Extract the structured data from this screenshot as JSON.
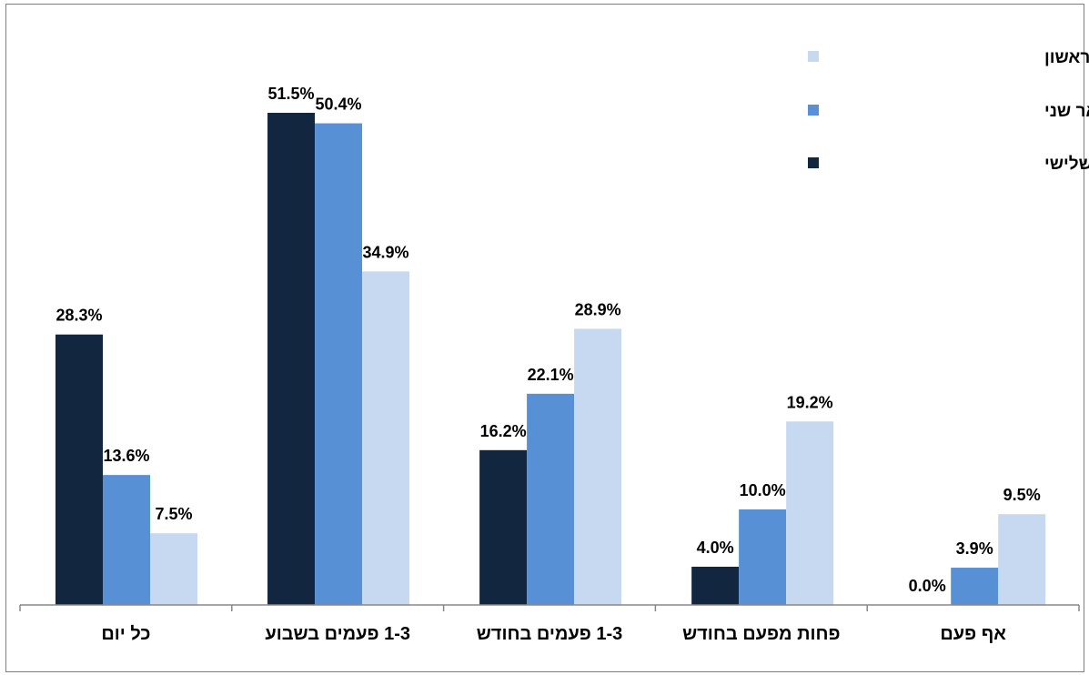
{
  "chart_data": {
    "type": "bar",
    "title": "",
    "xlabel": "",
    "ylabel": "",
    "ylim": [
      0,
      55
    ],
    "grid": false,
    "legend_position": "top-right",
    "categories": [
      "כל יום",
      "1-3 פעמים בשבוע",
      "1-3 פעמים בחודש",
      "פחות מפעם בחודש",
      "אף פעם"
    ],
    "series": [
      {
        "name": "סטודנט/ית לתואר שלישי",
        "color": "#132640",
        "values": [
          28.3,
          51.5,
          16.2,
          4.0,
          0.0
        ],
        "labels": [
          "28.3%",
          "51.5%",
          "16.2%",
          "4.0%",
          "0.0%"
        ]
      },
      {
        "name": "סטודנט/ית לתואר שני",
        "color": "#5890d6",
        "values": [
          13.6,
          50.4,
          22.1,
          10.0,
          3.9
        ],
        "labels": [
          "13.6%",
          "50.4%",
          "22.1%",
          "10.0%",
          "3.9%"
        ]
      },
      {
        "name": "סטודנט/ית לתואר ראשון",
        "color": "#c7d9f0",
        "values": [
          7.5,
          34.9,
          28.9,
          19.2,
          9.5
        ],
        "labels": [
          "7.5%",
          "34.9%",
          "28.9%",
          "19.2%",
          "9.5%"
        ]
      }
    ],
    "legend_order": [
      2,
      1,
      0
    ]
  }
}
